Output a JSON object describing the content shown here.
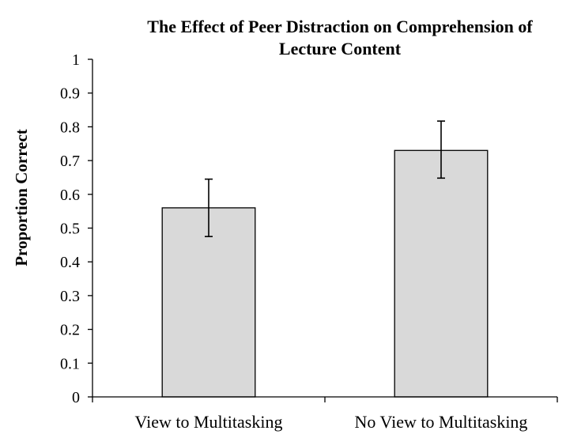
{
  "chart_data": {
    "type": "bar",
    "title_lines": [
      "The Effect of Peer Distraction on Comprehension of",
      "Lecture Content"
    ],
    "xlabel": "",
    "ylabel": "Proportion Correct",
    "categories": [
      "View to Multitasking",
      "No View to Multitasking"
    ],
    "values": [
      0.56,
      0.73
    ],
    "error_bars": [
      {
        "low": 0.475,
        "high": 0.645
      },
      {
        "low": 0.648,
        "high": 0.817
      }
    ],
    "ylim": [
      0,
      1
    ],
    "yticks": [
      "0",
      "0.1",
      "0.2",
      "0.3",
      "0.4",
      "0.5",
      "0.6",
      "0.7",
      "0.8",
      "0.9",
      "1"
    ],
    "grid": false,
    "legend": "none",
    "colors": {
      "bar_fill": "#d9d9d9",
      "bar_stroke": "#000000",
      "axis": "#000000",
      "error_bar": "#000000"
    }
  }
}
